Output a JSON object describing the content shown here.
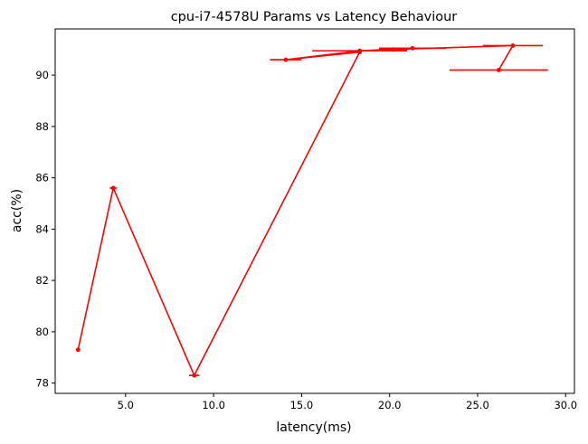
{
  "chart_data": {
    "type": "line",
    "title": "cpu-i7-4578U Params vs Latency Behaviour",
    "xlabel": "latency(ms)",
    "ylabel": "acc(%)",
    "xlim": [
      1.0,
      30.5
    ],
    "ylim": [
      77.6,
      91.8
    ],
    "xticks": [
      5.0,
      10.0,
      15.0,
      20.0,
      25.0,
      30.0
    ],
    "xtick_labels": [
      "5.0",
      "10.0",
      "15.0",
      "20.0",
      "25.0",
      "30.0"
    ],
    "yticks": [
      78,
      80,
      82,
      84,
      86,
      88,
      90
    ],
    "ytick_labels": [
      "78",
      "80",
      "82",
      "84",
      "86",
      "88",
      "90"
    ],
    "grid": false,
    "color": "#ff0000",
    "series": [
      {
        "x": [
          2.3,
          4.3,
          8.9,
          18.3,
          14.1,
          18.3,
          21.3,
          20.2,
          27.0,
          26.2
        ],
        "y": [
          79.3,
          85.6,
          78.3,
          90.9,
          90.6,
          90.95,
          91.05,
          91.0,
          91.15,
          90.2
        ],
        "xerr": [
          0.0,
          0.2,
          0.3,
          0.1,
          0.9,
          2.7,
          1.9,
          0.8,
          1.7,
          2.8
        ]
      }
    ]
  }
}
